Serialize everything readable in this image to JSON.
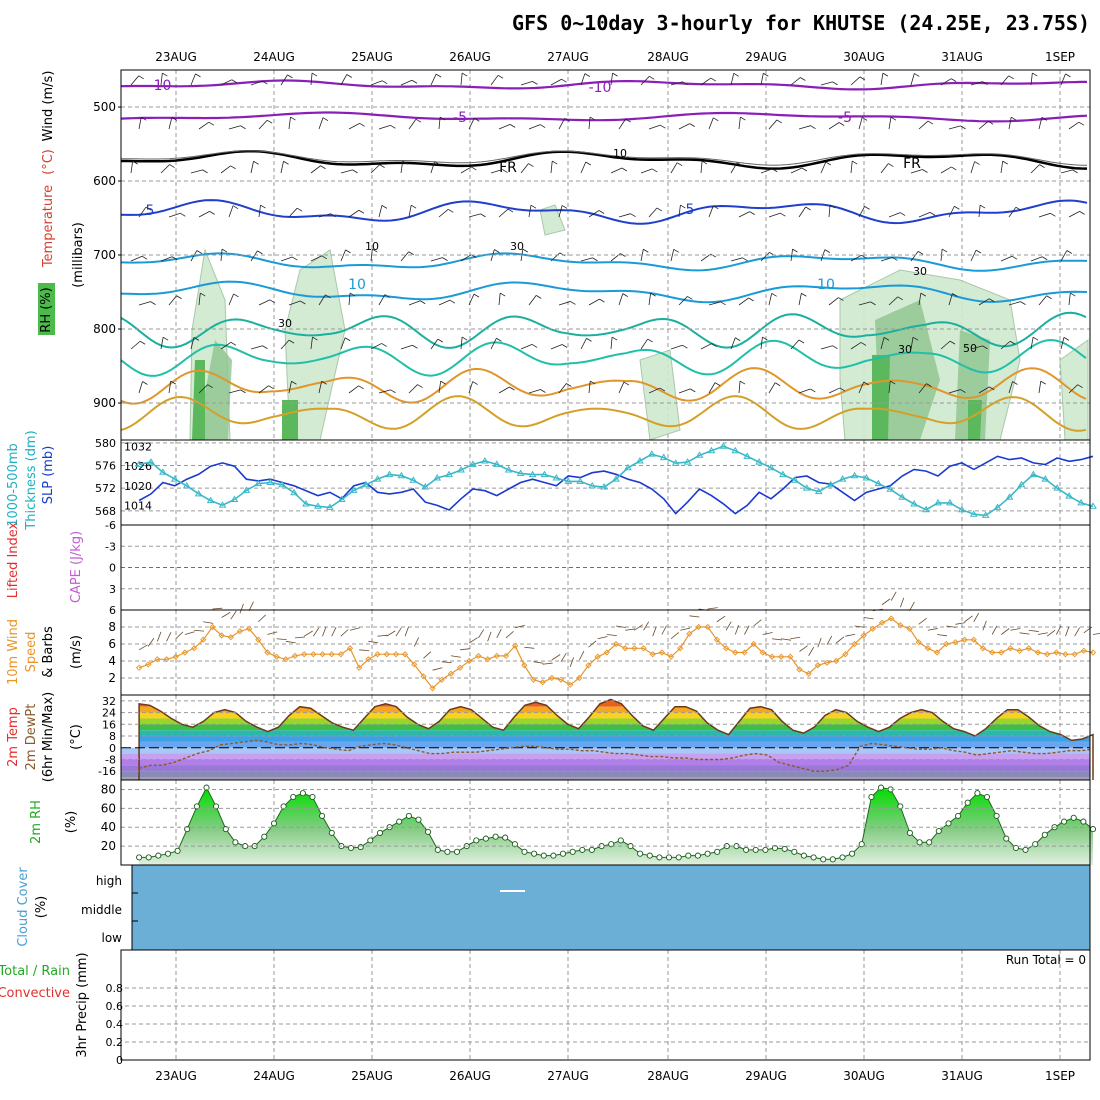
{
  "title": "GFS 0~10day 3-hourly for KHUTSE (24.25E, 23.75S)",
  "dates": [
    "23AUG",
    "24AUG",
    "25AUG",
    "26AUG",
    "27AUG",
    "28AUG",
    "29AUG",
    "30AUG",
    "31AUG",
    "1SEP"
  ],
  "colors": {
    "temp_purple": "#8a1fb8",
    "fr_black": "#000000",
    "blue_dark": "#1f3fcc",
    "blue_light": "#1a9ad6",
    "teal": "#1ab0a0",
    "orange": "#e0962a",
    "rh_green": "#4aa84a",
    "cloud_blue": "#6baed6",
    "slp_blue": "#1a3ad0",
    "thick_teal": "#3ab8c8",
    "wind_orange": "#e8962a",
    "rh2m_green": "#22aa22"
  },
  "chart_data": [
    {
      "panel": "upper-air",
      "type": "contour",
      "ylabel_parts": {
        "rh": "RH (%)",
        "temperature": "Temperature",
        "tunit": "(°C)",
        "wind": "Wind (m/s)",
        "mb": "(millibars)"
      },
      "y_ticks": [
        "500",
        "600",
        "700",
        "800",
        "900"
      ],
      "y_range_mb": [
        450,
        950
      ],
      "temp_labels": [
        "-10",
        "-10",
        "-5",
        "-5",
        "FR",
        "FR",
        "5",
        "5",
        "10",
        "10"
      ],
      "rh_labels": [
        "10",
        "10",
        "30",
        "30",
        "30",
        "30",
        "50"
      ]
    },
    {
      "panel": "thickness-slp",
      "type": "line",
      "ylabel_parts": {
        "thick": "1000-500mb",
        "thick2": "Thickness (dm)",
        "slp": "SLP (mb)"
      },
      "left_ticks": [
        "580",
        "576",
        "572",
        "568"
      ],
      "right_ticks": [
        "1032",
        "1026",
        "1020",
        "1014"
      ],
      "series": [
        {
          "name": "SLP (mb)",
          "axis": "right",
          "values": [
            1015.5,
            1017.5,
            1021,
            1020,
            1022,
            1023.5,
            1026,
            1027,
            1026,
            1022,
            1021.5,
            1022,
            1021,
            1020,
            1018.5,
            1017,
            1018,
            1016,
            1020,
            1021,
            1018,
            1017.5,
            1018,
            1019,
            1015,
            1014,
            1012.6,
            1016,
            1019,
            1018.5,
            1017,
            1019,
            1021,
            1022,
            1021,
            1020,
            1023,
            1022.5,
            1024,
            1024.5,
            1023.5,
            1022,
            1021,
            1019,
            1016,
            1011.5,
            1015,
            1019,
            1017,
            1014.5,
            1011.5,
            1014,
            1018,
            1016,
            1019,
            1022.5,
            1023,
            1021,
            1020.5,
            1018,
            1015.5,
            1018,
            1019,
            1020,
            1023,
            1025,
            1024.5,
            1023,
            1026,
            1027,
            1025,
            1027,
            1029,
            1028,
            1028.5,
            1027,
            1026.5,
            1028.5,
            1027.5,
            1028,
            1029
          ]
        },
        {
          "name": "Thickness (dm)",
          "axis": "left",
          "values": [
            576.2,
            576.6,
            574.8,
            573.6,
            572.4,
            571,
            569.8,
            569,
            570,
            571.6,
            572.8,
            573,
            572.6,
            571.2,
            569.2,
            568.8,
            568.6,
            570,
            571.6,
            572.6,
            573.6,
            574.4,
            574.2,
            573.4,
            572.2,
            573.8,
            574.4,
            575.2,
            576.2,
            576.8,
            576.2,
            575.2,
            574.6,
            574.4,
            574.4,
            573.8,
            573.2,
            573.2,
            572.4,
            572.2,
            573.6,
            575.6,
            576.8,
            578,
            577.4,
            576.4,
            576.6,
            577.8,
            578.6,
            579.4,
            578.6,
            577.6,
            576.6,
            575.6,
            574.4,
            573.4,
            572,
            571.4,
            572.6,
            573.6,
            574.2,
            573.8,
            572.8,
            571.8,
            570.4,
            569.2,
            568.2,
            569.4,
            569.4,
            568.2,
            567.4,
            567.2,
            568.6,
            570.4,
            572.6,
            574.4,
            573.6,
            572,
            570.6,
            569.4,
            568.8
          ]
        }
      ]
    },
    {
      "panel": "li-cape",
      "type": "line",
      "ylabel_parts": {
        "li": "Lifted Index",
        "cape": "CAPE (J/kg)"
      },
      "y_ticks": [
        "-6",
        "-3",
        "0",
        "3",
        "6"
      ],
      "series": []
    },
    {
      "panel": "wind10m",
      "type": "line",
      "ylabel_parts": {
        "a": "10m Wind",
        "b": "Speed",
        "c": "& Barbs",
        "unit": "(m/s)"
      },
      "y_ticks": [
        "8",
        "6",
        "4",
        "2"
      ],
      "y_range": [
        0,
        10
      ],
      "series": [
        {
          "name": "10m Wind Speed",
          "values": [
            3.2,
            3.6,
            4.2,
            4.2,
            4.5,
            5,
            5.5,
            6.5,
            8,
            7,
            6.8,
            7.5,
            7.8,
            6.5,
            5,
            4.5,
            4.2,
            4.6,
            4.8,
            4.8,
            4.8,
            4.8,
            4.8,
            5.5,
            3.2,
            4.2,
            4.8,
            4.8,
            4.8,
            4.8,
            3.6,
            2.2,
            0.8,
            1.8,
            2.5,
            3.2,
            4,
            4.6,
            4.2,
            4.6,
            4.6,
            5.8,
            3.5,
            1.8,
            1.5,
            2,
            1.8,
            1.2,
            2,
            3.5,
            4.5,
            5,
            6,
            5.5,
            5.5,
            5.5,
            4.8,
            5,
            4.5,
            5.5,
            7.2,
            8,
            8,
            6.5,
            5.5,
            5,
            5,
            6,
            5,
            4.5,
            4.5,
            4.5,
            3,
            2.5,
            3.5,
            3.8,
            4,
            4.8,
            6,
            7,
            7.8,
            8.5,
            9,
            8.2,
            7.8,
            6.2,
            5.5,
            5,
            6,
            6.2,
            6.5,
            6.5,
            5.5,
            5,
            5,
            5.5,
            5.2,
            5.5,
            5,
            4.8,
            5,
            4.8,
            4.8,
            5.2,
            5
          ]
        }
      ]
    },
    {
      "panel": "temp2m",
      "type": "area",
      "ylabel_parts": {
        "a": "2m Temp",
        "b": "2m DewPt",
        "c": "(6hr Min/Max)",
        "unit": "(°C)"
      },
      "y_ticks": [
        "32",
        "24",
        "16",
        "8",
        "0",
        "-8",
        "-16"
      ],
      "y_range": [
        -22,
        36
      ],
      "series": [
        {
          "name": "2m Temp",
          "values": [
            30,
            29,
            25,
            20,
            16,
            14,
            18,
            24,
            26,
            24,
            18,
            14,
            11,
            14,
            22,
            28,
            27,
            22,
            17,
            14,
            12,
            20,
            28,
            30,
            28,
            21,
            16,
            13,
            18,
            26,
            28,
            26,
            20,
            14,
            12,
            21,
            29,
            31,
            29,
            22,
            16,
            13,
            21,
            30,
            33,
            30,
            22,
            15,
            12,
            20,
            28,
            28,
            25,
            17,
            12,
            9,
            18,
            27,
            28,
            26,
            18,
            12,
            10,
            14,
            22,
            26,
            24,
            18,
            14,
            11,
            14,
            20,
            24,
            26,
            24,
            18,
            13,
            11,
            8,
            13,
            20,
            26,
            26,
            21,
            15,
            11,
            9,
            5,
            6,
            9
          ]
        },
        {
          "name": "2m DewPt",
          "values": [
            -14,
            -12,
            -12,
            -10,
            -7,
            -4,
            -2,
            2,
            3,
            4,
            5,
            4,
            2,
            2,
            3,
            2,
            0,
            -1,
            -2,
            1,
            2,
            3,
            2,
            0,
            -2,
            -4,
            -4,
            -3,
            -3,
            -3,
            -2,
            -1,
            0,
            1,
            1,
            0,
            -1,
            -1,
            -2,
            -2,
            -3,
            -4,
            -4,
            -5,
            -6,
            -6,
            -7,
            -7,
            -8,
            -8,
            -8,
            -7,
            -5,
            -4,
            -5,
            -10,
            -12,
            -14,
            -16,
            -16,
            -15,
            -12,
            1,
            3,
            2,
            1,
            0,
            -1,
            -1,
            0,
            -2,
            -3,
            -5,
            -4,
            -3,
            -2,
            -3,
            -4,
            -4,
            -3,
            -2,
            -2,
            -1
          ]
        }
      ]
    },
    {
      "panel": "rh2m",
      "type": "area",
      "ylabel_parts": {
        "a": "2m RH",
        "unit": "(%)"
      },
      "y_ticks": [
        "80",
        "60",
        "40",
        "20"
      ],
      "y_range": [
        0,
        90
      ],
      "series": [
        {
          "name": "2m RH",
          "values": [
            8,
            8,
            10,
            12,
            15,
            38,
            62,
            82,
            62,
            38,
            24,
            20,
            20,
            30,
            44,
            62,
            72,
            76,
            72,
            52,
            34,
            20,
            18,
            19,
            26,
            34,
            40,
            46,
            52,
            48,
            35,
            16,
            14,
            14,
            20,
            26,
            28,
            30,
            29,
            22,
            14,
            12,
            10,
            10,
            12,
            14,
            16,
            16,
            20,
            22,
            26,
            20,
            12,
            10,
            8,
            8,
            8,
            10,
            10,
            12,
            14,
            20,
            20,
            16,
            16,
            16,
            18,
            17,
            14,
            10,
            8,
            6,
            6,
            8,
            12,
            22,
            72,
            82,
            80,
            62,
            34,
            24,
            24,
            36,
            44,
            52,
            66,
            76,
            72,
            52,
            28,
            18,
            16,
            22,
            32,
            40,
            46,
            50,
            46,
            38
          ]
        }
      ]
    },
    {
      "panel": "cloud",
      "type": "area",
      "ylabel_parts": {
        "a": "Cloud Cover",
        "unit": "(%)"
      },
      "y_ticks": [
        "high",
        "middle",
        "low"
      ],
      "series": []
    },
    {
      "panel": "precip",
      "type": "bar",
      "ylabel_parts": {
        "total": "Total / Rain",
        "conv": "Convective",
        "main": "3hr Precip (mm)"
      },
      "y_ticks": [
        "0.8",
        "0.6",
        "0.4",
        "0.2",
        "0"
      ],
      "y_range": [
        0,
        1
      ],
      "run_total_label": "Run Total = 0",
      "series": []
    }
  ]
}
